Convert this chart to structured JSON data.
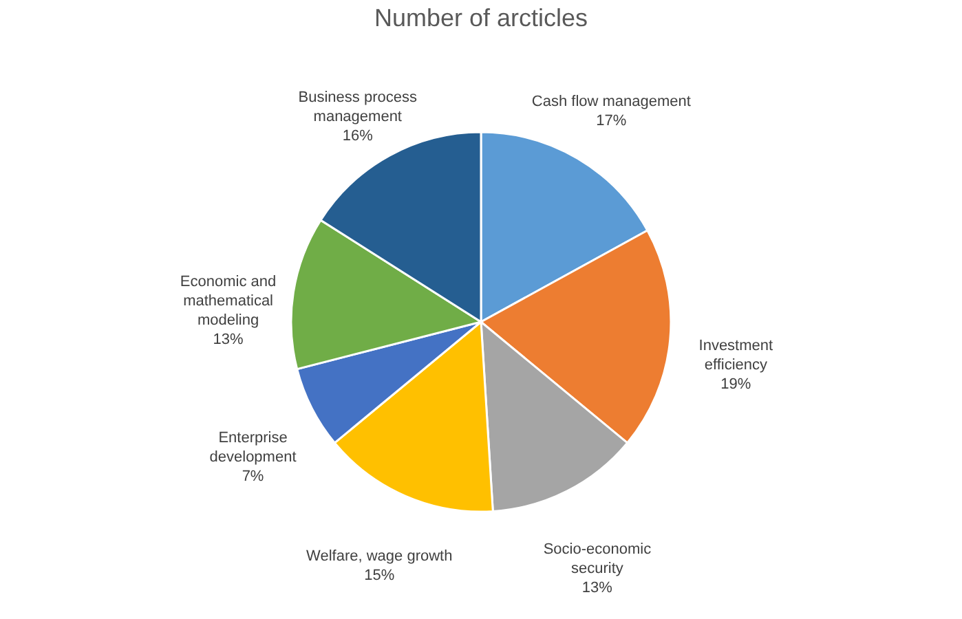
{
  "chart_data": {
    "type": "pie",
    "title": "Number of arcticles",
    "categories": [
      "Cash flow management",
      "Investment efficiency",
      "Socio-economic security",
      "Welfare, wage growth",
      "Enterprise development",
      "Economic and mathematical modeling",
      "Business process management"
    ],
    "values": [
      17,
      19,
      13,
      15,
      7,
      13,
      16
    ],
    "value_labels": [
      "17%",
      "19%",
      "13%",
      "15%",
      "7%",
      "13%",
      "16%"
    ],
    "colors": [
      "#5b9bd5",
      "#ed7d31",
      "#a5a5a5",
      "#ffc000",
      "#4472c4",
      "#70ad47",
      "#255e91"
    ],
    "legend": false
  }
}
